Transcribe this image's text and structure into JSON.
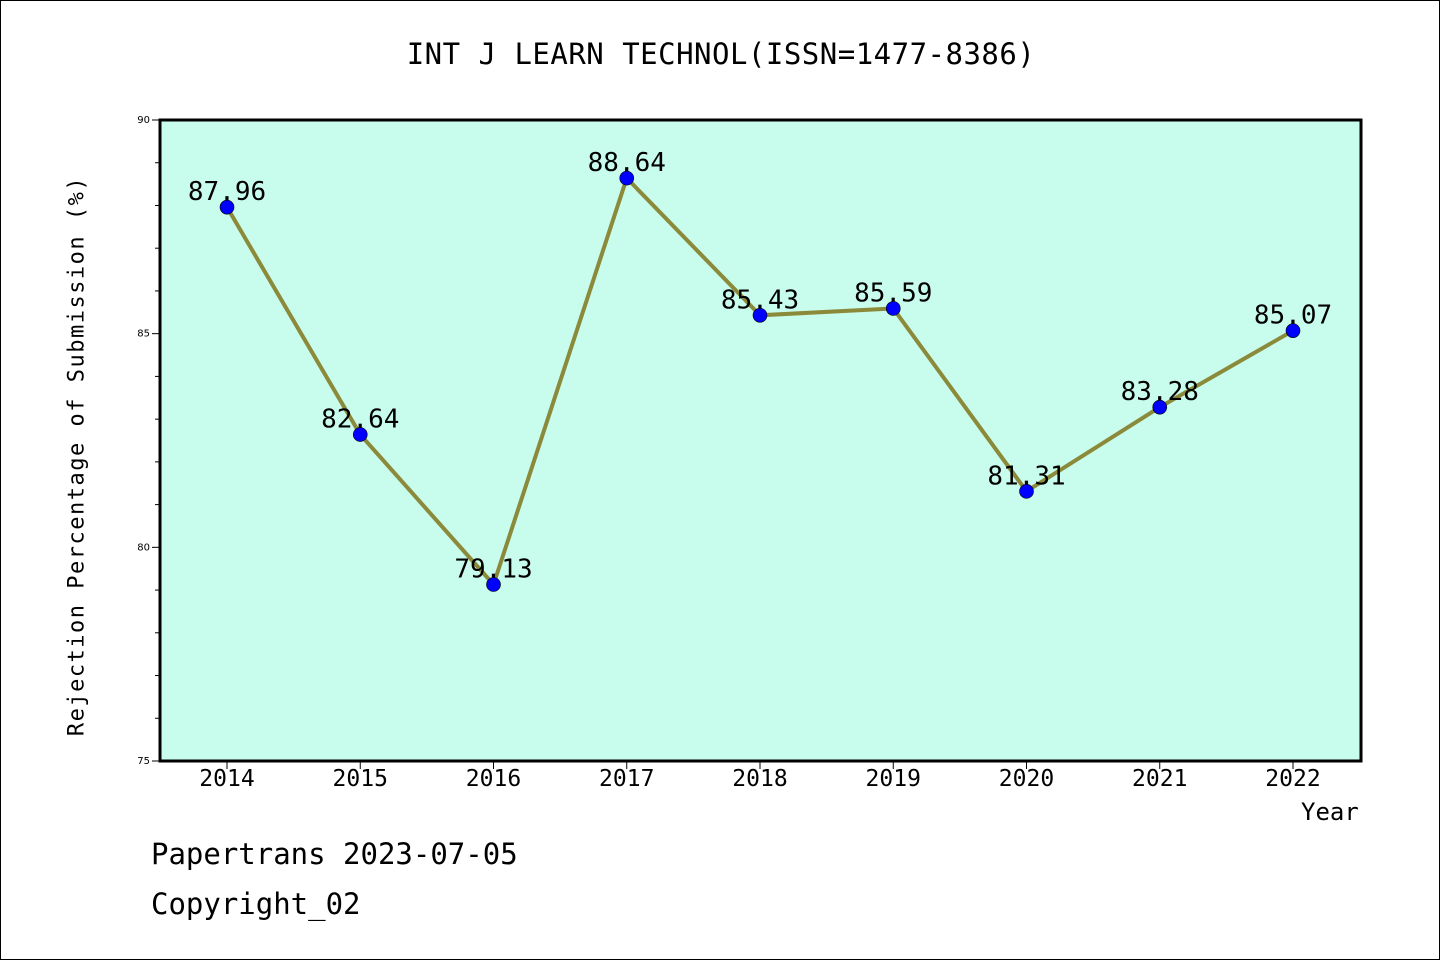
{
  "chart_data": {
    "type": "line",
    "title": "INT J LEARN TECHNOL(ISSN=1477-8386)",
    "xlabel": "Year",
    "ylabel": "Rejection Percentage of Submission (%)",
    "categories": [
      "2014",
      "2015",
      "2016",
      "2017",
      "2018",
      "2019",
      "2020",
      "2021",
      "2022"
    ],
    "series": [
      {
        "values": [
          87.96,
          82.64,
          79.13,
          88.64,
          85.43,
          85.59,
          81.31,
          83.28,
          85.07
        ]
      }
    ],
    "data_labels": [
      "87.96",
      "82.64",
      "79.13",
      "88.64",
      "85.43",
      "85.59",
      "81.31",
      "83.28",
      "85.07"
    ],
    "ylim": [
      75,
      90
    ],
    "yticks": [
      "75",
      "80",
      "85",
      "90"
    ],
    "grid": false,
    "colors": {
      "plot_background": "#c8fcec",
      "line": "#8b8a3a",
      "marker": "#0000ff"
    }
  },
  "footer": {
    "date_text": "Papertrans 2023-07-05",
    "copyright_text": "Copyright_02"
  }
}
